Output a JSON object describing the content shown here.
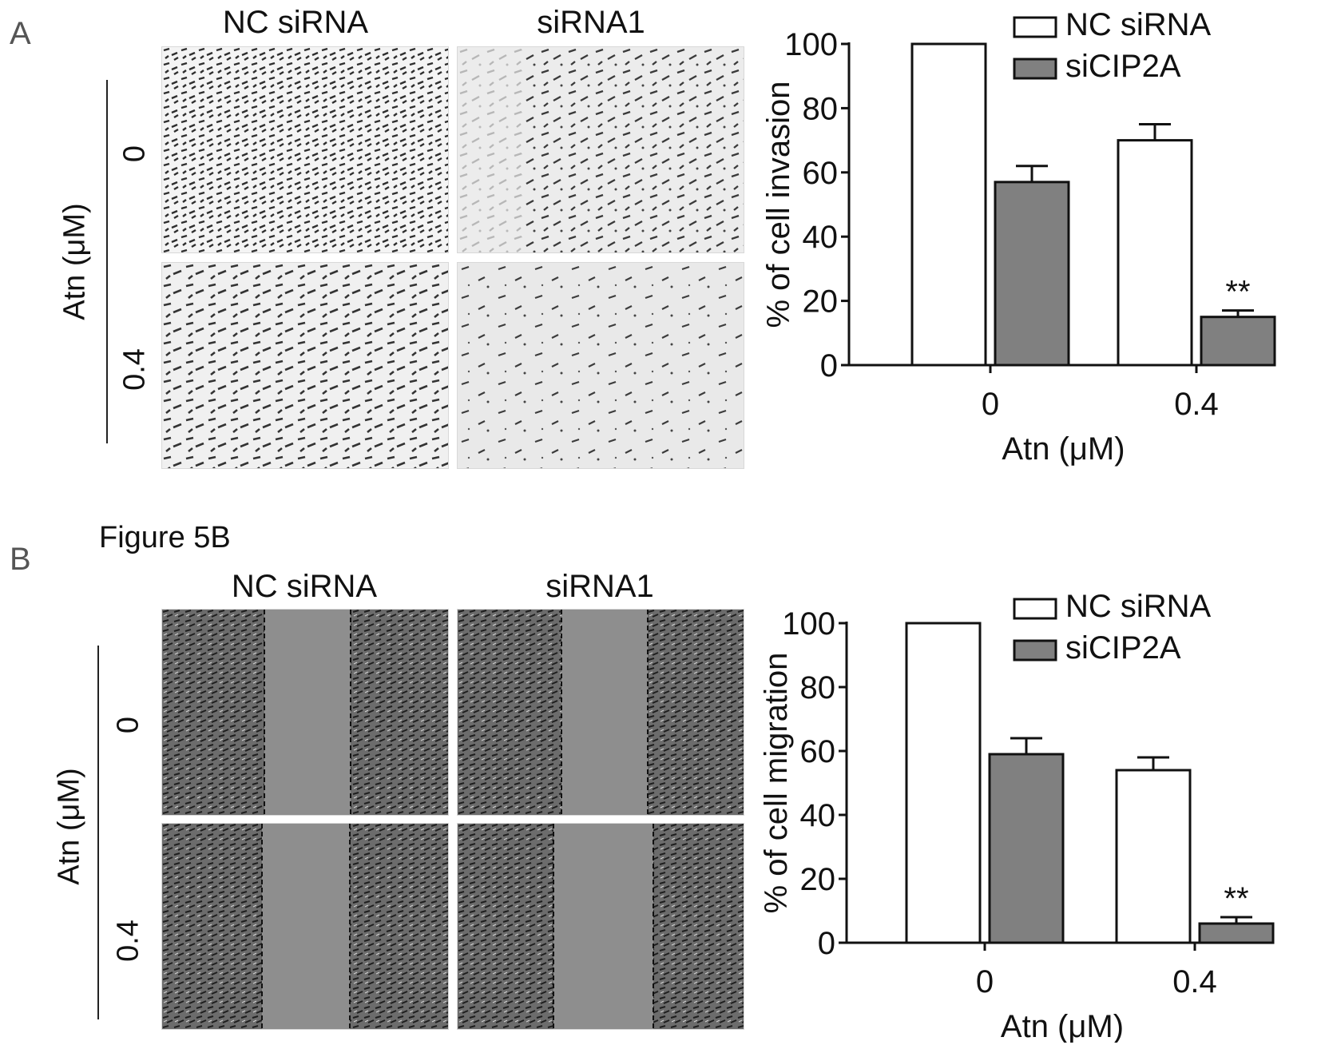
{
  "panels": [
    {
      "letter": "A",
      "caption": "",
      "columns": [
        "NC siRNA",
        "siRNA1"
      ],
      "row_group_label": "Atn (μM)",
      "rows": [
        "0",
        "0.4"
      ]
    },
    {
      "letter": "B",
      "caption": "Figure 5B",
      "columns": [
        "NC siRNA",
        "siRNA1"
      ],
      "row_group_label": "Atn (μM)",
      "rows": [
        "0",
        "0.4"
      ]
    }
  ],
  "chart_data": [
    {
      "type": "bar",
      "categories": [
        "0",
        "0.4"
      ],
      "series": [
        {
          "name": "NC siRNA",
          "values": [
            100,
            70
          ],
          "errors": [
            0,
            5
          ],
          "color": "#ffffff"
        },
        {
          "name": "siCIP2A",
          "values": [
            57,
            15
          ],
          "errors": [
            5,
            2
          ],
          "color": "#808080"
        }
      ],
      "xlabel": "Atn (μM)",
      "ylabel": "% of cell invasion",
      "ylim": [
        0,
        100
      ],
      "yticks": [
        "0",
        "20",
        "40",
        "60",
        "80",
        "100"
      ],
      "annotations": [
        {
          "category": "0.4",
          "series": "siCIP2A",
          "text": "**"
        }
      ],
      "legend_position": "top-right",
      "grid": false
    },
    {
      "type": "bar",
      "categories": [
        "0",
        "0.4"
      ],
      "series": [
        {
          "name": "NC siRNA",
          "values": [
            100,
            54
          ],
          "errors": [
            0,
            4
          ],
          "color": "#ffffff"
        },
        {
          "name": "siCIP2A",
          "values": [
            59,
            6
          ],
          "errors": [
            5,
            2
          ],
          "color": "#808080"
        }
      ],
      "xlabel": "Atn (μM)",
      "ylabel": "% of cell migration",
      "ylim": [
        0,
        100
      ],
      "yticks": [
        "0",
        "20",
        "40",
        "60",
        "80",
        "100"
      ],
      "annotations": [
        {
          "category": "0.4",
          "series": "siCIP2A",
          "text": "**"
        }
      ],
      "legend_position": "top-right",
      "grid": false
    }
  ]
}
